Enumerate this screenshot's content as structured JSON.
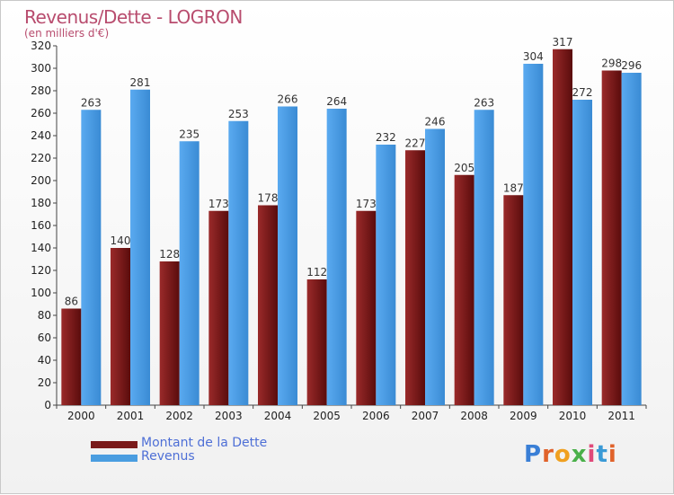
{
  "chart_data": {
    "type": "bar",
    "title": "Revenus/Dette - LOGRON",
    "subtitle": "(en milliers d'€)",
    "categories": [
      "2000",
      "2001",
      "2002",
      "2003",
      "2004",
      "2005",
      "2006",
      "2007",
      "2008",
      "2009",
      "2010",
      "2011"
    ],
    "series": [
      {
        "name": "Montant de la Dette",
        "color": "#7a1a1a",
        "values": [
          86,
          140,
          128,
          173,
          178,
          112,
          173,
          227,
          205,
          187,
          317,
          298
        ]
      },
      {
        "name": "Revenus",
        "color": "#4a9de0",
        "values": [
          263,
          281,
          235,
          253,
          266,
          264,
          232,
          246,
          263,
          304,
          272,
          296
        ]
      }
    ],
    "ylim": [
      0,
      320
    ],
    "ytick_step": 20,
    "grid": false,
    "legend_position": "bottom-left"
  },
  "logo_text": "Proxiti"
}
